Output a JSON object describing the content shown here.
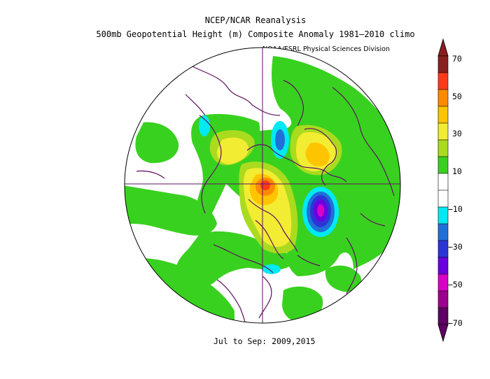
{
  "header": {
    "title": "NCEP/NCAR Reanalysis",
    "subtitle": "500mb Geopotential Height (m) Composite Anomaly 1981–2010 climo",
    "credit": "NOAA/ESRL Physical Sciences Division"
  },
  "footer": {
    "period": "Jul to Sep: 2009,2015"
  },
  "map": {
    "projection": "north-polar-stereographic",
    "variable": "500mb geopotential height anomaly",
    "units": "m"
  },
  "colorbar": {
    "tick_labels": [
      "70",
      "50",
      "30",
      "10",
      "−10",
      "−30",
      "−50",
      "−70"
    ],
    "colors": [
      "#8b1e1e",
      "#ff3b1a",
      "#ff8a00",
      "#ffc400",
      "#f2ec33",
      "#aadb1e",
      "#39d11f",
      "#ffffff",
      "#ffffff",
      "#00e9f3",
      "#1f70d8",
      "#2b35d6",
      "#6a00e0",
      "#d800c8",
      "#9c008f",
      "#5e0063"
    ]
  }
}
